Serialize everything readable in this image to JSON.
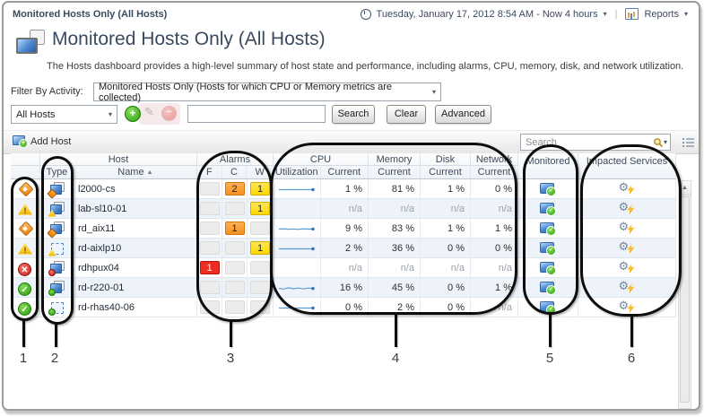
{
  "breadcrumb": "Monitored Hosts Only (All Hosts)",
  "topbar": {
    "time_range": "Tuesday, January 17, 2012 8:54 AM - Now 4 hours",
    "reports_label": "Reports"
  },
  "page": {
    "title": "Monitored Hosts Only (All Hosts)",
    "description": "The Hosts dashboard provides a high-level summary of host state and performance, including alarms, CPU, memory, disk, and network utilization."
  },
  "filter": {
    "label": "Filter By Activity:",
    "value": "Monitored Hosts Only (Hosts for which CPU or Memory metrics are collected)"
  },
  "toolbar": {
    "scope_value": "All Hosts",
    "search_value": "",
    "search_button": "Search",
    "clear_button": "Clear",
    "advanced_button": "Advanced"
  },
  "table_toolbar": {
    "add_host_label": "Add Host",
    "search_placeholder": "Search"
  },
  "table": {
    "groups": {
      "host": "Host",
      "alarms": "Alarms",
      "cpu": "CPU",
      "memory": "Memory",
      "disk": "Disk",
      "network": "Network",
      "monitored": "Monitored",
      "impacted": "Impacted Services"
    },
    "columns": {
      "type": "Type",
      "name": "Name",
      "fatal": "F",
      "critical": "C",
      "warning": "W",
      "utilization": "Utilization",
      "current": "Current"
    },
    "rows": [
      {
        "name": "l2000-cs",
        "status": "critical",
        "type": "physical",
        "alarms": {
          "f": null,
          "c": 2,
          "w": 1
        },
        "sparkline": [
          6,
          6,
          6,
          6,
          6,
          6,
          6,
          6
        ],
        "cpu": "1 %",
        "memory": "81 %",
        "disk": "1 %",
        "network": "0 %",
        "monitored": true,
        "impacted_services": true
      },
      {
        "name": "lab-sl10-01",
        "status": "warning",
        "type": "physical",
        "alarms": {
          "f": null,
          "c": null,
          "w": 1
        },
        "sparkline": null,
        "cpu": "n/a",
        "memory": "n/a",
        "disk": "n/a",
        "network": "n/a",
        "monitored": true,
        "impacted_services": true
      },
      {
        "name": "rd_aix11",
        "status": "critical",
        "type": "physical",
        "alarms": {
          "f": null,
          "c": 1,
          "w": null
        },
        "sparkline": [
          6,
          6.4,
          5.9,
          6.2,
          5.7,
          6.4,
          6,
          6.1
        ],
        "cpu": "9 %",
        "memory": "83 %",
        "disk": "1 %",
        "network": "1 %",
        "monitored": true,
        "impacted_services": true
      },
      {
        "name": "rd-aixlp10",
        "status": "warning",
        "type": "virtual",
        "alarms": {
          "f": null,
          "c": null,
          "w": 1
        },
        "sparkline": [
          6,
          6,
          6,
          6,
          6,
          6,
          6,
          6
        ],
        "cpu": "2 %",
        "memory": "36 %",
        "disk": "0 %",
        "network": "0 %",
        "monitored": true,
        "impacted_services": true
      },
      {
        "name": "rdhpux04",
        "status": "fatal",
        "type": "physical",
        "alarms": {
          "f": 1,
          "c": null,
          "w": null
        },
        "sparkline": null,
        "cpu": "n/a",
        "memory": "n/a",
        "disk": "n/a",
        "network": "n/a",
        "monitored": true,
        "impacted_services": true
      },
      {
        "name": "rd-r220-01",
        "status": "normal",
        "type": "physical",
        "alarms": {
          "f": null,
          "c": null,
          "w": null
        },
        "sparkline": [
          6,
          5.2,
          6.6,
          5.5,
          6.3,
          5.3,
          6.3,
          5.8
        ],
        "cpu": "16 %",
        "memory": "45 %",
        "disk": "0 %",
        "network": "1 %",
        "monitored": true,
        "impacted_services": true
      },
      {
        "name": "rd-rhas40-06",
        "status": "normal",
        "type": "virtual",
        "alarms": {
          "f": null,
          "c": null,
          "w": null
        },
        "sparkline": [
          6,
          6,
          6,
          6,
          6,
          6,
          6,
          6
        ],
        "cpu": "0 %",
        "memory": "2 %",
        "disk": "0 %",
        "network": "n/a",
        "monitored": true,
        "impacted_services": true
      }
    ]
  },
  "callouts": [
    "1",
    "2",
    "3",
    "4",
    "5",
    "6"
  ],
  "colors": {
    "fatal": "#ee2d22",
    "critical": "#f78f1e",
    "warning": "#ffd800",
    "normal": "#2f9e0e",
    "sparkline": "#5b9bd5",
    "accent_navy": "#3a4a5e"
  }
}
